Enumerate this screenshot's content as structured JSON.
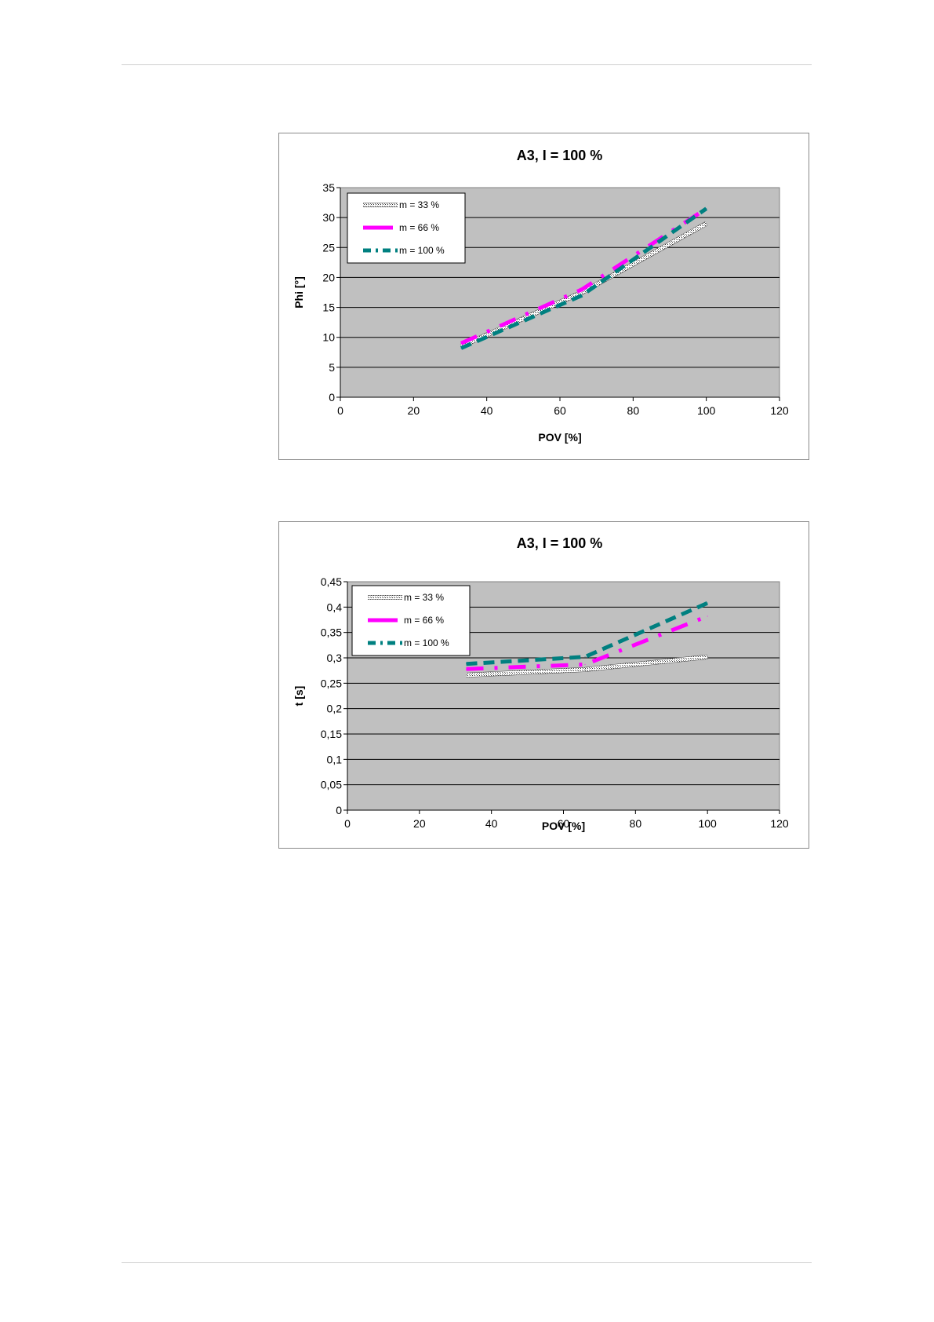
{
  "chart_data": [
    {
      "type": "line",
      "title": "A3,  I = 100 %",
      "xlabel": "POV [%]",
      "ylabel": "Phi [°]",
      "xlim": [
        0,
        120
      ],
      "ylim": [
        0,
        35
      ],
      "xticks": [
        "0",
        "20",
        "40",
        "60",
        "80",
        "100",
        "120"
      ],
      "yticks": [
        "0",
        "5",
        "10",
        "15",
        "20",
        "25",
        "30",
        "35"
      ],
      "grid": true,
      "legend_position": "top-left",
      "series": [
        {
          "name": "m = 33 %",
          "color": "#ffffff",
          "style": "hatched",
          "x": [
            33,
            66,
            100
          ],
          "y": [
            8.5,
            17.5,
            29
          ]
        },
        {
          "name": "m = 66 %",
          "color": "#ff00ff",
          "style": "dash-dot",
          "x": [
            33,
            66,
            100
          ],
          "y": [
            9,
            18,
            31.5
          ]
        },
        {
          "name": "m = 100 %",
          "color": "#008080",
          "style": "dashed",
          "x": [
            33,
            66,
            100
          ],
          "y": [
            8.2,
            17,
            31.5
          ]
        }
      ]
    },
    {
      "type": "line",
      "title": "A3,  I = 100 %",
      "xlabel": "POV [%]",
      "ylabel": "t [s]",
      "xlim": [
        0,
        120
      ],
      "ylim": [
        0,
        0.45
      ],
      "xticks": [
        "0",
        "20",
        "40",
        "60",
        "80",
        "100",
        "120"
      ],
      "yticks": [
        "0",
        "0,05",
        "0,1",
        "0,15",
        "0,2",
        "0,25",
        "0,3",
        "0,35",
        "0,4",
        "0,45"
      ],
      "grid": true,
      "legend_position": "top-left",
      "series": [
        {
          "name": "m = 33 %",
          "color": "#ffffff",
          "style": "hatched",
          "x": [
            33,
            66,
            100
          ],
          "y": [
            0.266,
            0.277,
            0.302
          ]
        },
        {
          "name": "m = 66 %",
          "color": "#ff00ff",
          "style": "dash-dot",
          "x": [
            33,
            66,
            100
          ],
          "y": [
            0.278,
            0.287,
            0.382
          ]
        },
        {
          "name": "m = 100 %",
          "color": "#008080",
          "style": "dashed",
          "x": [
            33,
            66,
            100
          ],
          "y": [
            0.288,
            0.302,
            0.408
          ]
        }
      ]
    }
  ]
}
